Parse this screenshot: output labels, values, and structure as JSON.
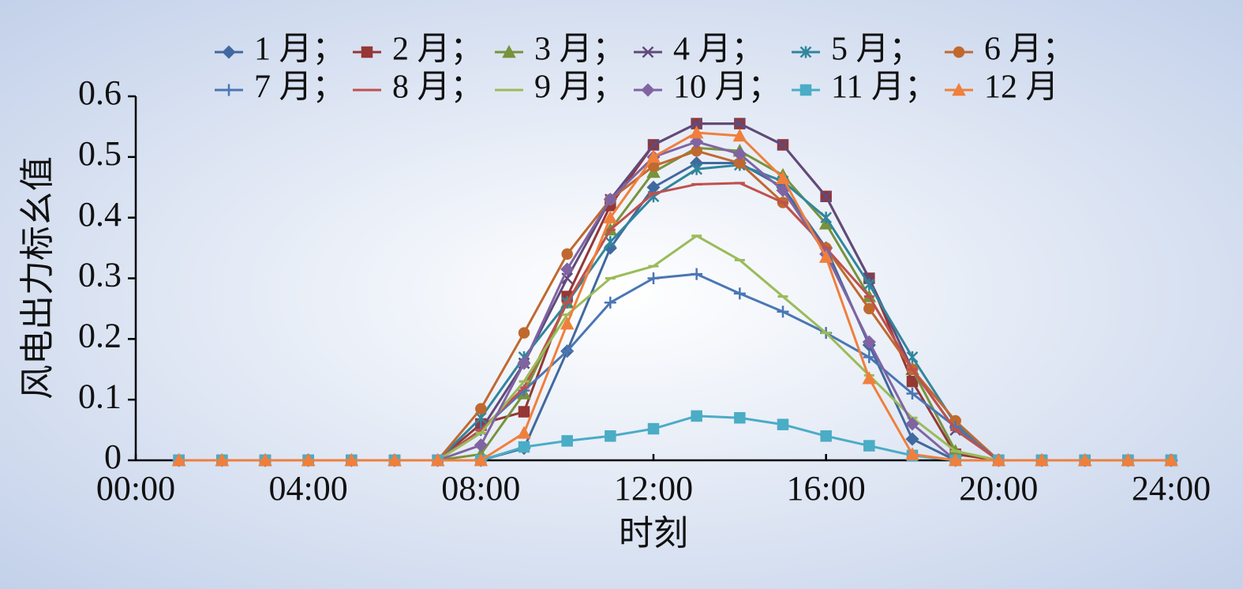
{
  "chart_data": {
    "type": "line",
    "x_label": "时刻",
    "y_label": "风电出力标幺值",
    "x": [
      1,
      2,
      3,
      4,
      5,
      6,
      7,
      8,
      9,
      10,
      11,
      12,
      13,
      14,
      15,
      16,
      17,
      18,
      19,
      20,
      21,
      22,
      23,
      24
    ],
    "xlim": [
      0,
      24
    ],
    "xticks": [
      {
        "value": 0,
        "label": "00:00"
      },
      {
        "value": 4,
        "label": "04:00"
      },
      {
        "value": 8,
        "label": "08:00"
      },
      {
        "value": 12,
        "label": "12:00"
      },
      {
        "value": 16,
        "label": "16:00"
      },
      {
        "value": 20,
        "label": "20:00"
      },
      {
        "value": 24,
        "label": "24:00"
      }
    ],
    "ylim": [
      0,
      0.6
    ],
    "yticks": [
      0,
      0.1,
      0.2,
      0.3,
      0.4,
      0.5,
      0.6
    ],
    "series": [
      {
        "name": "1 月；",
        "color": "#41699f",
        "marker": "diamond",
        "values": [
          0,
          0,
          0,
          0,
          0,
          0,
          0,
          0,
          0.02,
          0.18,
          0.35,
          0.45,
          0.49,
          0.49,
          0.45,
          0.35,
          0.19,
          0.035,
          0,
          0,
          0,
          0,
          0,
          0
        ]
      },
      {
        "name": "2 月；",
        "color": "#953735",
        "marker": "square",
        "values": [
          0,
          0,
          0,
          0,
          0,
          0,
          0,
          0.06,
          0.08,
          0.27,
          0.42,
          0.52,
          0.555,
          0.555,
          0.52,
          0.435,
          0.3,
          0.13,
          0.01,
          0,
          0,
          0,
          0,
          0
        ]
      },
      {
        "name": "3 月；",
        "color": "#77933c",
        "marker": "triangle",
        "values": [
          0,
          0,
          0,
          0,
          0,
          0,
          0,
          0.01,
          0.11,
          0.26,
          0.38,
          0.475,
          0.515,
          0.51,
          0.47,
          0.39,
          0.27,
          0.15,
          0.015,
          0,
          0,
          0,
          0,
          0
        ]
      },
      {
        "name": "4 月；",
        "color": "#604a7b",
        "marker": "x",
        "values": [
          0,
          0,
          0,
          0,
          0,
          0,
          0,
          0.05,
          0.16,
          0.3,
          0.43,
          0.52,
          0.555,
          0.555,
          0.52,
          0.435,
          0.3,
          0.15,
          0.05,
          0,
          0,
          0,
          0,
          0
        ]
      },
      {
        "name": "5 月；",
        "color": "#31859c",
        "marker": "star",
        "values": [
          0,
          0,
          0,
          0,
          0,
          0,
          0,
          0.07,
          0.17,
          0.26,
          0.36,
          0.435,
          0.48,
          0.487,
          0.46,
          0.4,
          0.29,
          0.17,
          0.06,
          0,
          0,
          0,
          0,
          0
        ]
      },
      {
        "name": "6 月；",
        "color": "#c0692f",
        "marker": "circle",
        "values": [
          0,
          0,
          0,
          0,
          0,
          0,
          0,
          0.085,
          0.21,
          0.34,
          0.43,
          0.485,
          0.51,
          0.49,
          0.425,
          0.35,
          0.25,
          0.15,
          0.065,
          0,
          0,
          0,
          0,
          0
        ]
      },
      {
        "name": "7 月；",
        "color": "#4a76b4",
        "marker": "plus",
        "values": [
          0,
          0,
          0,
          0,
          0,
          0,
          0,
          0.05,
          0.115,
          0.18,
          0.26,
          0.3,
          0.307,
          0.275,
          0.245,
          0.21,
          0.17,
          0.11,
          0.055,
          0,
          0,
          0,
          0,
          0
        ]
      },
      {
        "name": "8 月；",
        "color": "#c0504d",
        "marker": "dash",
        "values": [
          0,
          0,
          0,
          0,
          0,
          0,
          0,
          0.05,
          0.12,
          0.26,
          0.38,
          0.44,
          0.455,
          0.457,
          0.425,
          0.35,
          0.27,
          0.15,
          0.05,
          0,
          0,
          0,
          0,
          0
        ]
      },
      {
        "name": "9 月；",
        "color": "#9bbb59",
        "marker": "dash",
        "values": [
          0,
          0,
          0,
          0,
          0,
          0,
          0,
          0.045,
          0.13,
          0.24,
          0.3,
          0.32,
          0.37,
          0.33,
          0.27,
          0.21,
          0.14,
          0.07,
          0.015,
          0,
          0,
          0,
          0,
          0
        ]
      },
      {
        "name": "10 月；",
        "color": "#8064a2",
        "marker": "diamond",
        "values": [
          0,
          0,
          0,
          0,
          0,
          0,
          0,
          0.025,
          0.16,
          0.315,
          0.43,
          0.5,
          0.525,
          0.505,
          0.445,
          0.34,
          0.195,
          0.06,
          0,
          0,
          0,
          0,
          0,
          0
        ]
      },
      {
        "name": "11 月；",
        "color": "#4bacc6",
        "marker": "square",
        "values": [
          0,
          0,
          0,
          0,
          0,
          0,
          0,
          0,
          0.022,
          0.032,
          0.04,
          0.052,
          0.073,
          0.07,
          0.059,
          0.04,
          0.024,
          0.008,
          0,
          0,
          0,
          0,
          0,
          0
        ]
      },
      {
        "name": "12 月",
        "color": "#f07f3c",
        "marker": "triangle",
        "values": [
          0,
          0,
          0,
          0,
          0,
          0,
          0,
          0,
          0.045,
          0.225,
          0.4,
          0.5,
          0.54,
          0.535,
          0.465,
          0.335,
          0.135,
          0.01,
          0,
          0,
          0,
          0,
          0,
          0
        ]
      }
    ]
  }
}
